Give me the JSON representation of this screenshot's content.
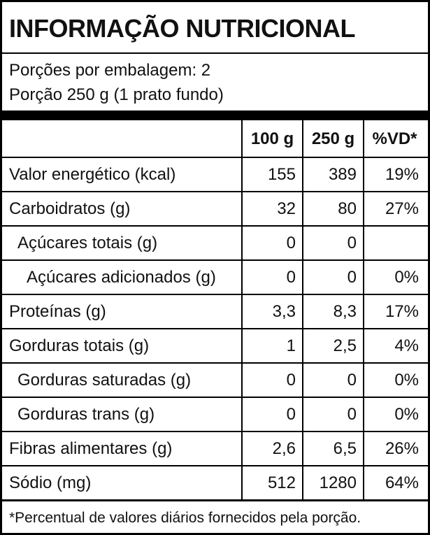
{
  "title": "INFORMAÇÃO NUTRICIONAL",
  "servings": [
    "Porções por embalagem: 2",
    "Porção 250 g (1 prato fundo)"
  ],
  "table": {
    "header": [
      "100 g",
      "250 g",
      "%VD*"
    ],
    "rows": [
      [
        "Valor energético (kcal)",
        "155",
        "389",
        "19%"
      ],
      [
        "Carboidratos (g)",
        "32",
        "80",
        "27%"
      ],
      [
        "Açúcares totais (g)",
        "0",
        "0",
        null
      ],
      [
        "Açúcares adicionados (g)",
        "0",
        "0",
        "0%"
      ],
      [
        "Proteínas (g)",
        "3,3",
        "8,3",
        "17%"
      ],
      [
        "Gorduras totais (g)",
        "1",
        "2,5",
        "4%"
      ],
      [
        "Gorduras saturadas (g)",
        "0",
        "0",
        "0%"
      ],
      [
        "Gorduras trans (g)",
        "0",
        "0",
        "0%"
      ],
      [
        "Fibras alimentares (g)",
        "2,6",
        "6,5",
        "26%"
      ],
      [
        "Sódio (mg)",
        "512",
        "1280",
        "64%"
      ]
    ]
  },
  "footnote": "*Percentual de valores diários fornecidos pela porção."
}
